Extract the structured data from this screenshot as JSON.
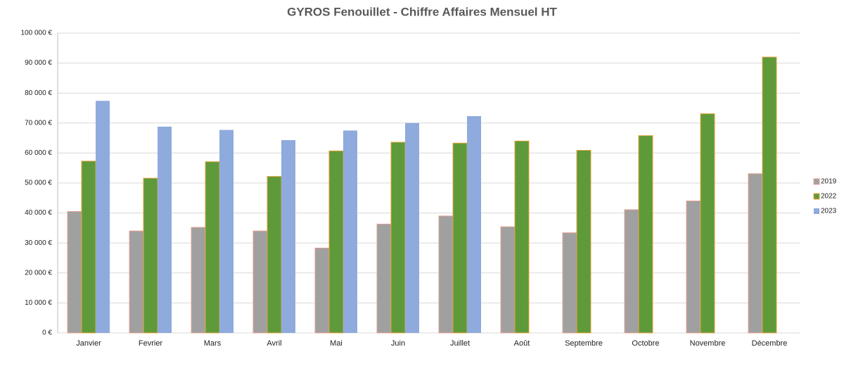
{
  "chart_data": {
    "type": "bar",
    "title": "GYROS Fenouillet - Chiffre Affaires Mensuel HT",
    "categories": [
      "Janvier",
      "Fevrier",
      "Mars",
      "Avril",
      "Mai",
      "Juin",
      "Juillet",
      "Août",
      "Septembre",
      "Octobre",
      "Novembre",
      "Décembre"
    ],
    "series": [
      {
        "name": "2019",
        "color": "#a0a0a0",
        "values": [
          40500,
          34000,
          35200,
          34000,
          28300,
          36300,
          39000,
          35400,
          33400,
          41100,
          44000,
          53100
        ]
      },
      {
        "name": "2022",
        "color": "#5e9a3a",
        "values": [
          57300,
          51600,
          57100,
          52200,
          60700,
          63600,
          63300,
          64000,
          60900,
          65800,
          73100,
          92000
        ]
      },
      {
        "name": "2023",
        "color": "#8faadc",
        "values": [
          77400,
          68800,
          67700,
          64300,
          67500,
          70000,
          72300,
          null,
          null,
          null,
          null,
          null
        ]
      }
    ],
    "ylim": [
      0,
      100000
    ],
    "yticks": [
      {
        "value": 0,
        "label": "0 €"
      },
      {
        "value": 10000,
        "label": "10 000 €"
      },
      {
        "value": 20000,
        "label": "20 000 €"
      },
      {
        "value": 30000,
        "label": "30 000 €"
      },
      {
        "value": 40000,
        "label": "40 000 €"
      },
      {
        "value": 50000,
        "label": "50 000 €"
      },
      {
        "value": 60000,
        "label": "60 000 €"
      },
      {
        "value": 70000,
        "label": "70 000 €"
      },
      {
        "value": 80000,
        "label": "80 000 €"
      },
      {
        "value": 90000,
        "label": "90 000 €"
      },
      {
        "value": 100000,
        "label": "100 000 €"
      }
    ],
    "grid": true,
    "legend": "right"
  }
}
